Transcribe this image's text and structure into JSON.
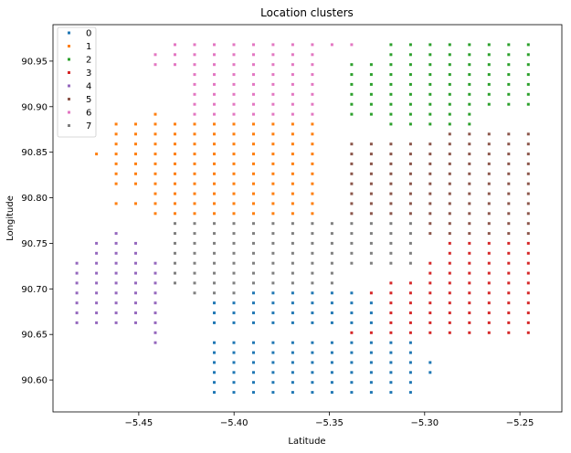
{
  "chart_data": {
    "type": "scatter",
    "title": "Location clusters",
    "xlabel": "Latitude",
    "ylabel": "Longitude",
    "xlim": [
      -5.495,
      -5.228
    ],
    "ylim": [
      90.565,
      90.99
    ],
    "xticks": [
      -5.45,
      -5.4,
      -5.35,
      -5.3,
      -5.25
    ],
    "xtick_labels": [
      "−5.45",
      "−5.40",
      "−5.35",
      "−5.30",
      "−5.25"
    ],
    "yticks": [
      90.6,
      90.65,
      90.7,
      90.75,
      90.8,
      90.85,
      90.9,
      90.95
    ],
    "ytick_labels": [
      "90.60",
      "90.65",
      "90.70",
      "90.75",
      "90.80",
      "90.85",
      "90.90",
      "90.95"
    ],
    "grid": false,
    "legend_position": "top-left",
    "marker_size": 3,
    "series": [
      {
        "name": "0",
        "color": "#1f77b4",
        "regions": [
          [
            -5.413,
            -5.304,
            90.586,
            90.598
          ],
          [
            -5.413,
            -5.297,
            90.607,
            90.62
          ],
          [
            -5.413,
            -5.304,
            90.63,
            90.642
          ],
          [
            -5.413,
            -5.324,
            90.652,
            90.664
          ],
          [
            -5.413,
            -5.324,
            90.664,
            90.686
          ],
          [
            -5.39,
            -5.33,
            90.686,
            90.696
          ]
        ]
      },
      {
        "name": "1",
        "color": "#ff7f0e",
        "regions": [
          [
            -5.48,
            -5.472,
            90.84,
            90.852
          ],
          [
            -5.468,
            -5.352,
            90.808,
            90.885
          ],
          [
            -5.468,
            -5.448,
            90.784,
            90.8
          ],
          [
            -5.445,
            -5.352,
            90.774,
            90.808
          ],
          [
            -5.446,
            -5.433,
            90.885,
            90.897
          ]
        ]
      },
      {
        "name": "2",
        "color": "#2ca02c",
        "regions": [
          [
            -5.325,
            -5.238,
            90.897,
            90.972
          ],
          [
            -5.346,
            -5.327,
            90.885,
            90.95
          ],
          [
            -5.326,
            -5.27,
            90.874,
            90.896
          ]
        ]
      },
      {
        "name": "3",
        "color": "#d62728",
        "regions": [
          [
            -5.32,
            -5.238,
            90.642,
            90.707
          ],
          [
            -5.29,
            -5.238,
            90.707,
            90.755
          ],
          [
            -5.343,
            -5.32,
            90.642,
            90.696
          ],
          [
            -5.3,
            -5.29,
            90.717,
            90.73
          ]
        ]
      },
      {
        "name": "4",
        "color": "#9467bd",
        "regions": [
          [
            -5.483,
            -5.435,
            90.652,
            90.73
          ],
          [
            -5.478,
            -5.445,
            90.73,
            90.752
          ],
          [
            -5.468,
            -5.46,
            90.752,
            90.766
          ],
          [
            -5.445,
            -5.434,
            90.64,
            90.652
          ]
        ]
      },
      {
        "name": "5",
        "color": "#8c564b",
        "regions": [
          [
            -5.34,
            -5.238,
            90.774,
            90.862
          ],
          [
            -5.3,
            -5.238,
            90.752,
            90.774
          ],
          [
            -5.29,
            -5.238,
            90.862,
            90.874
          ]
        ]
      },
      {
        "name": "6",
        "color": "#e377c2",
        "regions": [
          [
            -5.424,
            -5.352,
            90.874,
            90.962
          ],
          [
            -5.434,
            -5.394,
            90.95,
            90.972
          ],
          [
            -5.394,
            -5.33,
            90.962,
            90.972
          ],
          [
            -5.445,
            -5.426,
            90.94,
            90.962
          ],
          [
            -5.424,
            -5.381,
            90.862,
            90.874
          ]
        ]
      },
      {
        "name": "7",
        "color": "#7f7f7f",
        "regions": [
          [
            -5.435,
            -5.343,
            90.696,
            90.774
          ],
          [
            -5.343,
            -5.3,
            90.718,
            90.774
          ],
          [
            -5.424,
            -5.33,
            90.686,
            90.7
          ],
          [
            -5.343,
            -5.33,
            90.774,
            90.786
          ]
        ]
      }
    ]
  }
}
